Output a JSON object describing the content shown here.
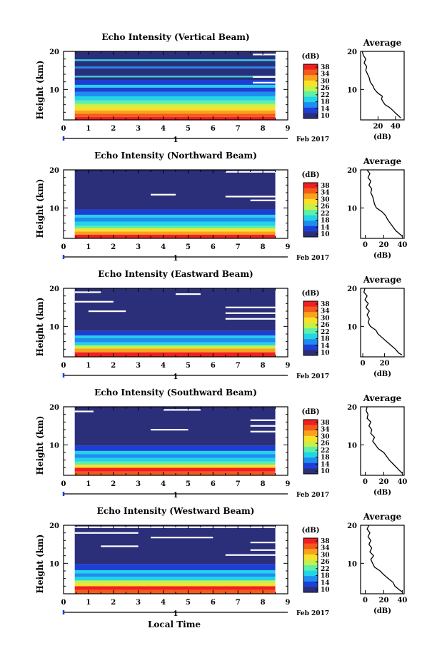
{
  "figure": {
    "xaxis_label": "Local Time",
    "date_label": "Feb 2017",
    "day_label": "1",
    "height_label": "Height (km)",
    "unit_label": "(dB)",
    "avg_title": "Average",
    "avg_xlabel": "(dB)"
  },
  "colorbar": {
    "ticks": [
      "38",
      "34",
      "30",
      "26",
      "22",
      "18",
      "14",
      "10"
    ],
    "colors": [
      "#2b2f7a",
      "#1e3fd6",
      "#1f8cf0",
      "#22d4e8",
      "#5ef0a8",
      "#c6f04a",
      "#fbe02a",
      "#f9a21c",
      "#f45a1c",
      "#f02020"
    ]
  },
  "chart_data": [
    {
      "type": "heatmap",
      "title": "Echo Intensity (Vertical Beam)",
      "x": [
        0,
        1,
        2,
        3,
        4,
        5,
        6,
        7,
        8,
        9
      ],
      "xlim": [
        0,
        9
      ],
      "ylim": [
        2,
        20
      ],
      "yticks": [
        10,
        20
      ],
      "zlim": [
        10,
        38
      ],
      "data_start": 0.45,
      "data_end": 8.5,
      "avg": {
        "xticks": [
          20,
          40
        ],
        "xlim": [
          0,
          50
        ],
        "profile": [
          [
            46,
            2.5
          ],
          [
            44,
            3
          ],
          [
            40,
            3.8
          ],
          [
            37,
            4.5
          ],
          [
            33,
            5.3
          ],
          [
            28,
            6
          ],
          [
            26,
            6.7
          ],
          [
            24,
            7.5
          ],
          [
            25,
            8.2
          ],
          [
            20,
            9
          ],
          [
            16,
            10
          ],
          [
            14,
            11
          ],
          [
            11,
            12
          ],
          [
            10,
            13
          ],
          [
            8,
            14
          ],
          [
            6,
            15
          ],
          [
            7,
            16
          ],
          [
            4,
            17
          ],
          [
            6,
            18
          ],
          [
            3,
            19
          ],
          [
            2,
            20
          ]
        ]
      },
      "bands": [
        {
          "y0": 2,
          "y1": 2.8,
          "color": "#f02020"
        },
        {
          "y0": 2.8,
          "y1": 3.6,
          "color": "#f45a1c"
        },
        {
          "y0": 3.6,
          "y1": 4.5,
          "color": "#f9a21c"
        },
        {
          "y0": 4.5,
          "y1": 5.4,
          "color": "#fbe02a"
        },
        {
          "y0": 5.4,
          "y1": 6.2,
          "color": "#c6f04a"
        },
        {
          "y0": 6.2,
          "y1": 7.1,
          "color": "#5ef0a8"
        },
        {
          "y0": 7.1,
          "y1": 8.2,
          "color": "#22d4e8"
        },
        {
          "y0": 8.2,
          "y1": 9.4,
          "color": "#1f8cf0"
        },
        {
          "y0": 9.4,
          "y1": 10.5,
          "color": "#1e3fd6"
        },
        {
          "y0": 10.5,
          "y1": 11.2,
          "color": "#22d4e8"
        },
        {
          "y0": 11.2,
          "y1": 12.5,
          "color": "#1e3fd6"
        },
        {
          "y0": 12.5,
          "y1": 13.2,
          "color": "#2b2f7a"
        },
        {
          "y0": 13.2,
          "y1": 13.6,
          "color": "#22d4e8"
        },
        {
          "y0": 13.6,
          "y1": 15.5,
          "color": "#2b2f7a"
        },
        {
          "y0": 15.5,
          "y1": 16,
          "color": "#1f8cf0"
        },
        {
          "y0": 16,
          "y1": 17.5,
          "color": "#2b2f7a"
        },
        {
          "y0": 17.5,
          "y1": 17.9,
          "color": "#22d4e8"
        },
        {
          "y0": 17.9,
          "y1": 20,
          "color": "#2b2f7a"
        }
      ],
      "gaps": [
        {
          "x0": 7.6,
          "x1": 8.5,
          "y": 19.2
        },
        {
          "x0": 7.6,
          "x1": 8.5,
          "y": 13.3
        },
        {
          "x0": 7.6,
          "x1": 8.5,
          "y": 11.8
        }
      ]
    },
    {
      "type": "heatmap",
      "title": "Echo Intensity (Northward Beam)",
      "x": [
        0,
        1,
        2,
        3,
        4,
        5,
        6,
        7,
        8,
        9
      ],
      "xlim": [
        0,
        9
      ],
      "ylim": [
        2,
        20
      ],
      "yticks": [
        10,
        20
      ],
      "zlim": [
        10,
        38
      ],
      "data_start": 0.45,
      "data_end": 8.5,
      "avg": {
        "xticks": [
          0,
          20,
          40
        ],
        "xlim": [
          -5,
          42
        ],
        "profile": [
          [
            40,
            2.5
          ],
          [
            38,
            3
          ],
          [
            33,
            4
          ],
          [
            30,
            5
          ],
          [
            27,
            6
          ],
          [
            24,
            7
          ],
          [
            22,
            8
          ],
          [
            18,
            9
          ],
          [
            12,
            10
          ],
          [
            10,
            11
          ],
          [
            9,
            12
          ],
          [
            8,
            13
          ],
          [
            6,
            14
          ],
          [
            7,
            15
          ],
          [
            4,
            16
          ],
          [
            6,
            17
          ],
          [
            3,
            18
          ],
          [
            5,
            19
          ],
          [
            2,
            20
          ]
        ]
      },
      "bands": [
        {
          "y0": 2,
          "y1": 3,
          "color": "#f02020"
        },
        {
          "y0": 3,
          "y1": 3.8,
          "color": "#f9a21c"
        },
        {
          "y0": 3.8,
          "y1": 4.6,
          "color": "#fbe02a"
        },
        {
          "y0": 4.6,
          "y1": 5.3,
          "color": "#5ef0a8"
        },
        {
          "y0": 5.3,
          "y1": 6.4,
          "color": "#22d4e8"
        },
        {
          "y0": 6.4,
          "y1": 7.5,
          "color": "#1f8cf0"
        },
        {
          "y0": 7.5,
          "y1": 8.2,
          "color": "#22d4e8"
        },
        {
          "y0": 8.2,
          "y1": 9.6,
          "color": "#1e3fd6"
        },
        {
          "y0": 9.6,
          "y1": 20,
          "color": "#2b2f7a"
        }
      ],
      "gaps": [
        {
          "x0": 6.5,
          "x1": 8.5,
          "y": 19.5
        },
        {
          "x0": 3.5,
          "x1": 4.5,
          "y": 13.5
        },
        {
          "x0": 6.5,
          "x1": 8.5,
          "y": 13
        },
        {
          "x0": 7.5,
          "x1": 8.5,
          "y": 12
        }
      ]
    },
    {
      "type": "heatmap",
      "title": "Echo Intensity (Eastward Beam)",
      "x": [
        0,
        1,
        2,
        3,
        4,
        5,
        6,
        7,
        8,
        9
      ],
      "xlim": [
        0,
        9
      ],
      "ylim": [
        2,
        20
      ],
      "yticks": [
        10,
        20
      ],
      "zlim": [
        10,
        38
      ],
      "data_start": 0.45,
      "data_end": 8.5,
      "avg": {
        "xticks": [
          0,
          20
        ],
        "xlim": [
          -2,
          38
        ],
        "profile": [
          [
            36,
            2.5
          ],
          [
            33,
            3
          ],
          [
            30,
            4
          ],
          [
            26,
            5
          ],
          [
            22,
            6
          ],
          [
            18,
            7
          ],
          [
            14,
            8
          ],
          [
            12,
            9
          ],
          [
            7,
            10
          ],
          [
            5,
            11
          ],
          [
            6,
            12
          ],
          [
            4,
            13
          ],
          [
            6,
            14
          ],
          [
            3,
            15
          ],
          [
            5,
            16
          ],
          [
            2,
            17
          ],
          [
            4,
            18
          ],
          [
            1,
            19
          ],
          [
            2,
            20
          ]
        ]
      },
      "bands": [
        {
          "y0": 2,
          "y1": 3.2,
          "color": "#f02020"
        },
        {
          "y0": 3.2,
          "y1": 4.2,
          "color": "#f9a21c"
        },
        {
          "y0": 4.2,
          "y1": 5,
          "color": "#c6f04a"
        },
        {
          "y0": 5,
          "y1": 5.8,
          "color": "#22d4e8"
        },
        {
          "y0": 5.8,
          "y1": 7,
          "color": "#1f8cf0"
        },
        {
          "y0": 7,
          "y1": 7.6,
          "color": "#22d4e8"
        },
        {
          "y0": 7.6,
          "y1": 8.8,
          "color": "#1e3fd6"
        },
        {
          "y0": 8.8,
          "y1": 20,
          "color": "#2b2f7a"
        }
      ],
      "gaps": [
        {
          "x0": 0.45,
          "x1": 1.5,
          "y": 19
        },
        {
          "x0": 4.5,
          "x1": 5.5,
          "y": 18.5
        },
        {
          "x0": 0.45,
          "x1": 2,
          "y": 16.5
        },
        {
          "x0": 6.5,
          "x1": 8.5,
          "y": 15
        },
        {
          "x0": 6.5,
          "x1": 8.5,
          "y": 13.5
        },
        {
          "x0": 6.5,
          "x1": 8.5,
          "y": 12
        },
        {
          "x0": 1,
          "x1": 2.5,
          "y": 14
        }
      ]
    },
    {
      "type": "heatmap",
      "title": "Echo Intensity (Southward Beam)",
      "x": [
        0,
        1,
        2,
        3,
        4,
        5,
        6,
        7,
        8,
        9
      ],
      "xlim": [
        0,
        9
      ],
      "ylim": [
        2,
        20
      ],
      "yticks": [
        10,
        20
      ],
      "zlim": [
        10,
        38
      ],
      "data_start": 0.45,
      "data_end": 8.5,
      "avg": {
        "xticks": [
          0,
          20,
          40
        ],
        "xlim": [
          -5,
          42
        ],
        "profile": [
          [
            40,
            2.5
          ],
          [
            38,
            3
          ],
          [
            34,
            4
          ],
          [
            30,
            5
          ],
          [
            26,
            6
          ],
          [
            23,
            7
          ],
          [
            20,
            8
          ],
          [
            14,
            9
          ],
          [
            11,
            10
          ],
          [
            8,
            11
          ],
          [
            10,
            12
          ],
          [
            6,
            13
          ],
          [
            7,
            14
          ],
          [
            4,
            15
          ],
          [
            6,
            16
          ],
          [
            2,
            17
          ],
          [
            3,
            18
          ],
          [
            1,
            19
          ],
          [
            2,
            20
          ]
        ]
      },
      "bands": [
        {
          "y0": 2,
          "y1": 3,
          "color": "#f45a1c"
        },
        {
          "y0": 3,
          "y1": 4,
          "color": "#f02020"
        },
        {
          "y0": 4,
          "y1": 4.8,
          "color": "#fbe02a"
        },
        {
          "y0": 4.8,
          "y1": 5.6,
          "color": "#5ef0a8"
        },
        {
          "y0": 5.6,
          "y1": 6.6,
          "color": "#22d4e8"
        },
        {
          "y0": 6.6,
          "y1": 7.6,
          "color": "#1f8cf0"
        },
        {
          "y0": 7.6,
          "y1": 8.4,
          "color": "#22d4e8"
        },
        {
          "y0": 8.4,
          "y1": 9.8,
          "color": "#1e3fd6"
        },
        {
          "y0": 9.8,
          "y1": 20,
          "color": "#2b2f7a"
        }
      ],
      "gaps": [
        {
          "x0": 0.45,
          "x1": 1.2,
          "y": 18.8
        },
        {
          "x0": 4,
          "x1": 5.5,
          "y": 19.2
        },
        {
          "x0": 3.5,
          "x1": 5,
          "y": 14
        },
        {
          "x0": 7.5,
          "x1": 8.5,
          "y": 16.5
        },
        {
          "x0": 7.5,
          "x1": 8.5,
          "y": 15
        },
        {
          "x0": 7.5,
          "x1": 8.5,
          "y": 13.5
        }
      ]
    },
    {
      "type": "heatmap",
      "title": "Echo Intensity (Westward Beam)",
      "x": [
        0,
        1,
        2,
        3,
        4,
        5,
        6,
        7,
        8,
        9
      ],
      "xlim": [
        0,
        9
      ],
      "ylim": [
        2,
        20
      ],
      "yticks": [
        10,
        20
      ],
      "zlim": [
        10,
        38
      ],
      "data_start": 0.45,
      "data_end": 8.5,
      "avg": {
        "xticks": [
          0,
          20,
          40
        ],
        "xlim": [
          -5,
          42
        ],
        "profile": [
          [
            40,
            2.5
          ],
          [
            37,
            3
          ],
          [
            32,
            4
          ],
          [
            30,
            5
          ],
          [
            25,
            6
          ],
          [
            20,
            7
          ],
          [
            16,
            8
          ],
          [
            10,
            9
          ],
          [
            8,
            10
          ],
          [
            6,
            11
          ],
          [
            9,
            12
          ],
          [
            5,
            13
          ],
          [
            7,
            14
          ],
          [
            4,
            15
          ],
          [
            6,
            16
          ],
          [
            3,
            17
          ],
          [
            5,
            18
          ],
          [
            2,
            19
          ],
          [
            4,
            20
          ]
        ]
      },
      "bands": [
        {
          "y0": 2,
          "y1": 3,
          "color": "#f45a1c"
        },
        {
          "y0": 3,
          "y1": 4,
          "color": "#f02020"
        },
        {
          "y0": 4,
          "y1": 4.7,
          "color": "#fbe02a"
        },
        {
          "y0": 4.7,
          "y1": 5.5,
          "color": "#c6f04a"
        },
        {
          "y0": 5.5,
          "y1": 6.5,
          "color": "#22d4e8"
        },
        {
          "y0": 6.5,
          "y1": 7.4,
          "color": "#1f8cf0"
        },
        {
          "y0": 7.4,
          "y1": 8.2,
          "color": "#22d4e8"
        },
        {
          "y0": 8.2,
          "y1": 9.8,
          "color": "#1e3fd6"
        },
        {
          "y0": 9.8,
          "y1": 20,
          "color": "#2b2f7a"
        }
      ],
      "gaps": [
        {
          "x0": 0.45,
          "x1": 8.5,
          "y": 19.5
        },
        {
          "x0": 0.45,
          "x1": 3,
          "y": 18
        },
        {
          "x0": 1.5,
          "x1": 3,
          "y": 14.5
        },
        {
          "x0": 3.5,
          "x1": 6,
          "y": 16.8
        },
        {
          "x0": 7.5,
          "x1": 8.5,
          "y": 15.5
        },
        {
          "x0": 7.5,
          "x1": 8.5,
          "y": 13.5
        },
        {
          "x0": 6.5,
          "x1": 8.5,
          "y": 12.2
        }
      ]
    }
  ]
}
